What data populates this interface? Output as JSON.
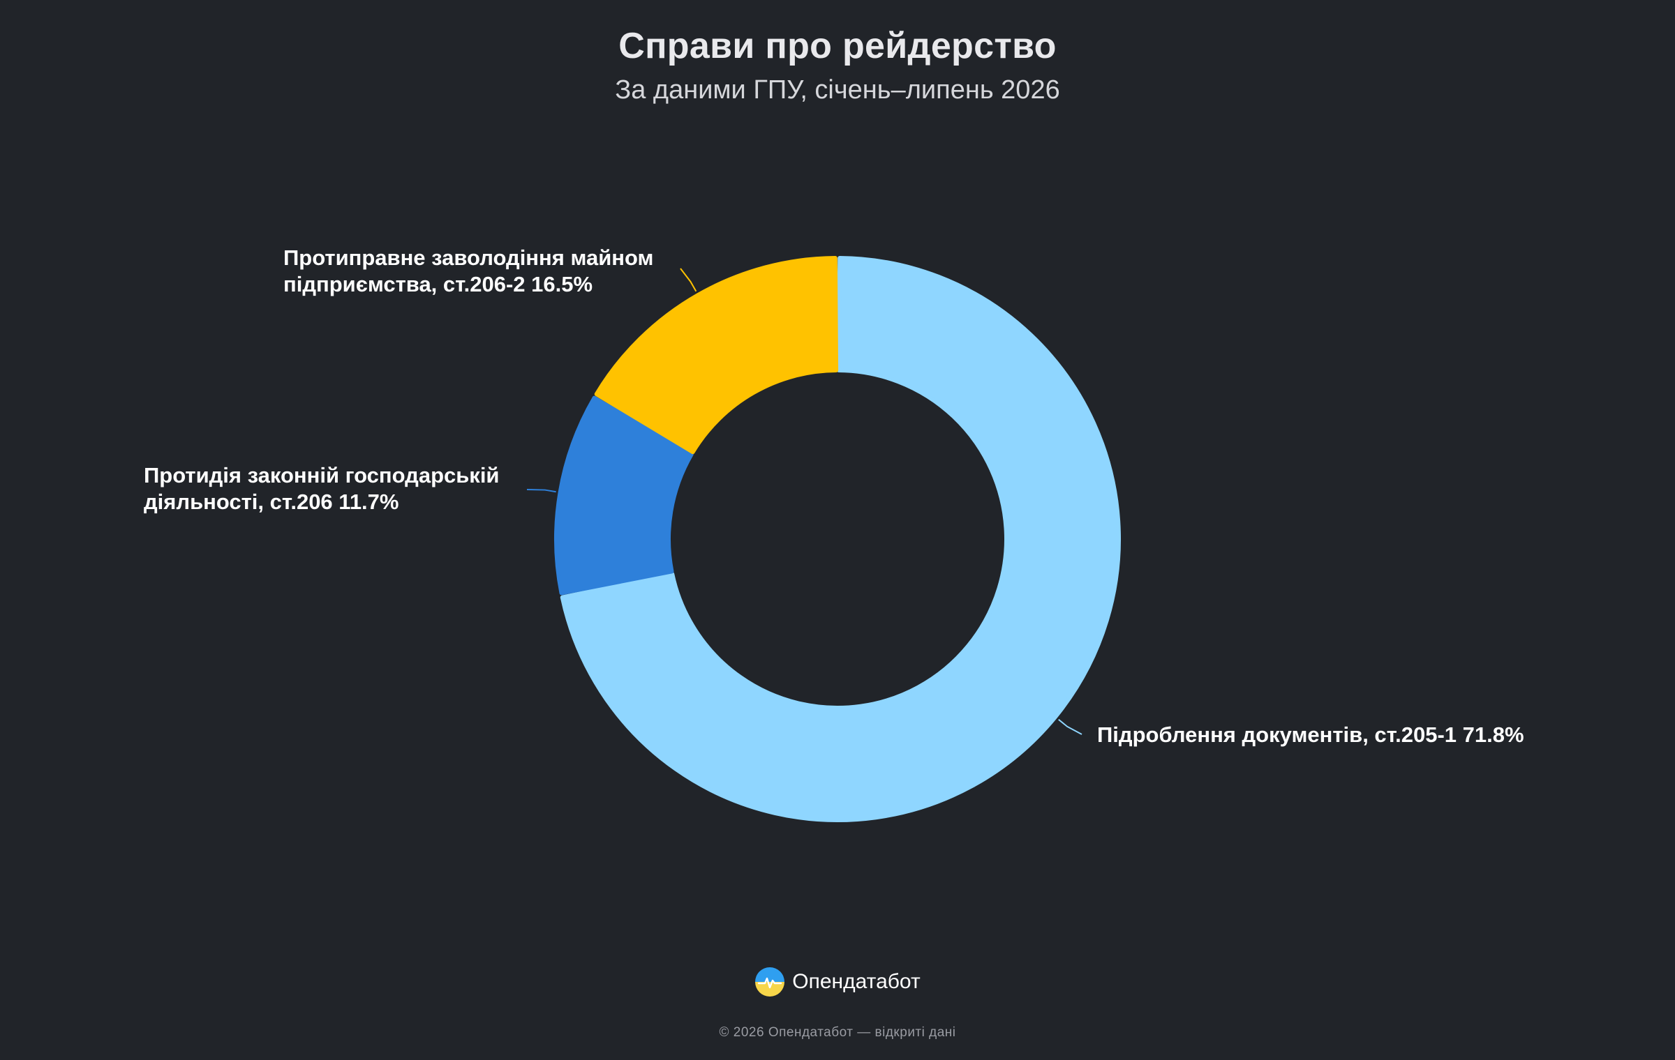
{
  "header": {
    "title": "Справи про рейдерство",
    "subtitle": "За даними ГПУ, січень–липень 2026"
  },
  "chart_data": {
    "type": "pie",
    "donut": true,
    "slices": [
      {
        "category": "Підроблення документів, ст.205-1",
        "value": 71.8,
        "value_label": "71.8%",
        "color": "#8fd6ff",
        "label_lines": [
          "Підроблення документів, ст.205-1 71.8%"
        ],
        "label_side": "right"
      },
      {
        "category": "Протидія законній господарській діяльності, ст.206",
        "value": 11.7,
        "value_label": "11.7%",
        "color": "#2e80da",
        "label_lines": [
          "Протидія законній господарській",
          "діяльності, ст.206 11.7%"
        ],
        "label_side": "left"
      },
      {
        "category": "Протиправне заволодіння майном підприємства, ст.206-2",
        "value": 16.5,
        "value_label": "16.5%",
        "color": "#ffc200",
        "label_lines": [
          "Протиправне заволодіння майном",
          "підприємства, ст.206-2 16.5%"
        ],
        "label_side": "left"
      }
    ],
    "legend": "none"
  },
  "footer": {
    "brand_name": "Опендатабот",
    "copyright": "© 2026 Опендатабот — відкриті дані",
    "logo_icon": "opendatabot-logo-icon"
  }
}
